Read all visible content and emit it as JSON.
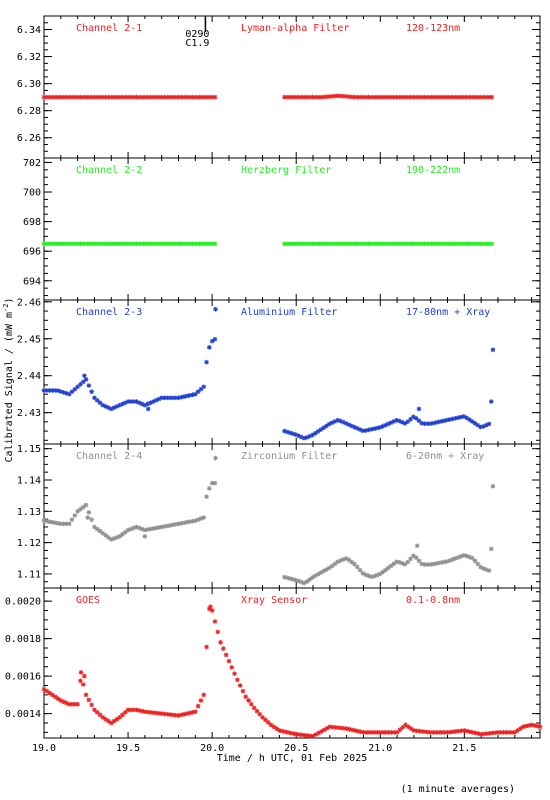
{
  "chart_data": {
    "type": "scatter",
    "ylabel": "Calibrated Signal / (mW m",
    "ylabel_sup": "-2",
    "ylabel_close": ")",
    "xlabel": "Time / h UTC, 01 Feb 2025",
    "footnote": "(1 minute averages)",
    "xlim": [
      19.0,
      21.95
    ],
    "xticks": [
      "19.0",
      "19.5",
      "20.0",
      "20.5",
      "21.0",
      "21.5"
    ],
    "marker": "*",
    "event_marker": {
      "x": 19.96,
      "label_top": "0290",
      "label_bottom": "C1.9"
    },
    "panels": [
      {
        "channel": "Channel 2-1",
        "filter": "Lyman-alpha Filter",
        "band": "120-123nm",
        "color": "#ee2222",
        "ylim": [
          6.245,
          6.35
        ],
        "yticks": [
          "6.26",
          "6.28",
          "6.30",
          "6.32",
          "6.34"
        ],
        "segments": [
          {
            "x": [
              19.0,
              20.03
            ],
            "y": [
              6.29,
              6.29
            ]
          },
          {
            "x": [
              20.43,
              20.65,
              20.75,
              20.85,
              21.67
            ],
            "y": [
              6.29,
              6.29,
              6.291,
              6.29,
              6.29
            ]
          }
        ]
      },
      {
        "channel": "Channel 2-2",
        "filter": "Herzberg Filter",
        "band": "190-222nm",
        "color": "#22ee22",
        "ylim": [
          692.7,
          702.3
        ],
        "yticks": [
          "694",
          "696",
          "698",
          "700",
          "702"
        ],
        "segments": [
          {
            "x": [
              19.0,
              20.03
            ],
            "y": [
              696.5,
              696.5
            ]
          },
          {
            "x": [
              20.43,
              21.67
            ],
            "y": [
              696.5,
              696.5
            ]
          }
        ]
      },
      {
        "channel": "Channel 2-3",
        "filter": "Aluminium Filter",
        "band": "17-80nm + Xray",
        "color": "#1f3fd0",
        "ylim": [
          2.4215,
          2.4605
        ],
        "yticks": [
          "2.43",
          "2.44",
          "2.45",
          "2.46"
        ],
        "segments": [
          {
            "x": [
              19.0,
              19.08,
              19.15,
              19.2,
              19.25,
              19.3,
              19.35,
              19.4,
              19.45,
              19.5,
              19.55,
              19.6,
              19.7,
              19.8,
              19.9,
              19.95,
              19.97,
              19.99,
              20.02
            ],
            "y": [
              2.436,
              2.436,
              2.435,
              2.437,
              2.439,
              2.434,
              2.432,
              2.431,
              2.432,
              2.433,
              2.433,
              2.432,
              2.434,
              2.434,
              2.435,
              2.437,
              2.445,
              2.449,
              2.45
            ]
          },
          {
            "x": [
              20.43,
              20.5,
              20.55,
              20.6,
              20.7,
              20.75,
              20.8,
              20.85,
              20.9,
              21.0,
              21.1,
              21.15,
              21.2,
              21.25,
              21.3,
              21.4,
              21.5,
              21.6,
              21.65
            ],
            "y": [
              2.425,
              2.424,
              2.423,
              2.424,
              2.427,
              2.428,
              2.427,
              2.426,
              2.425,
              2.426,
              2.428,
              2.427,
              2.429,
              2.427,
              2.427,
              2.428,
              2.429,
              2.426,
              2.427
            ]
          }
        ],
        "isolated": [
          {
            "x": 20.02,
            "y": 2.458
          },
          {
            "x": 19.24,
            "y": 2.44
          },
          {
            "x": 21.66,
            "y": 2.433
          },
          {
            "x": 21.67,
            "y": 2.447
          },
          {
            "x": 21.23,
            "y": 2.431
          },
          {
            "x": 19.62,
            "y": 2.431
          }
        ]
      },
      {
        "channel": "Channel 2-4",
        "filter": "Zirconium Filter",
        "band": "6-20nm + Xray",
        "color": "#909090",
        "ylim": [
          1.1055,
          1.1515
        ],
        "yticks": [
          "1.11",
          "1.12",
          "1.13",
          "1.14",
          "1.15"
        ],
        "segments": [
          {
            "x": [
              19.0,
              19.1,
              19.15,
              19.2,
              19.25,
              19.3,
              19.35,
              19.4,
              19.45,
              19.5,
              19.55,
              19.6,
              19.7,
              19.8,
              19.9,
              19.95,
              19.97,
              20.0,
              20.02
            ],
            "y": [
              1.127,
              1.126,
              1.126,
              1.13,
              1.132,
              1.125,
              1.123,
              1.121,
              1.122,
              1.124,
              1.125,
              1.124,
              1.125,
              1.126,
              1.127,
              1.128,
              1.136,
              1.139,
              1.139
            ]
          },
          {
            "x": [
              20.43,
              20.5,
              20.55,
              20.6,
              20.7,
              20.75,
              20.8,
              20.85,
              20.9,
              20.95,
              21.0,
              21.05,
              21.1,
              21.15,
              21.2,
              21.25,
              21.3,
              21.4,
              21.5,
              21.55,
              21.6,
              21.65
            ],
            "y": [
              1.109,
              1.108,
              1.107,
              1.109,
              1.112,
              1.114,
              1.115,
              1.113,
              1.11,
              1.109,
              1.11,
              1.112,
              1.114,
              1.113,
              1.116,
              1.113,
              1.113,
              1.114,
              1.116,
              1.115,
              1.112,
              1.111
            ]
          }
        ],
        "isolated": [
          {
            "x": 20.02,
            "y": 1.147
          },
          {
            "x": 19.26,
            "y": 1.128
          },
          {
            "x": 21.66,
            "y": 1.118
          },
          {
            "x": 21.67,
            "y": 1.138
          },
          {
            "x": 21.22,
            "y": 1.119
          },
          {
            "x": 19.6,
            "y": 1.122
          }
        ]
      },
      {
        "channel": "GOES",
        "filter": "Xray Sensor",
        "band": "0.1-0.8nm",
        "color": "#ee2222",
        "ylim": [
          0.00127,
          0.00207
        ],
        "yticks": [
          "0.0014",
          "0.0016",
          "0.0018",
          "0.0020"
        ],
        "segments": [
          {
            "x": [
              19.0,
              19.05,
              19.1,
              19.15,
              19.2,
              19.22,
              19.25,
              19.3,
              19.35,
              19.4,
              19.45,
              19.5,
              19.55,
              19.6,
              19.7,
              19.8,
              19.9,
              19.95,
              19.98,
              20.0,
              20.02,
              20.05,
              20.1,
              20.15,
              20.2,
              20.25,
              20.3,
              20.35,
              20.4,
              20.5,
              20.6,
              20.7,
              20.8,
              20.9,
              21.0,
              21.1,
              21.15,
              21.2,
              21.3,
              21.4,
              21.5,
              21.6,
              21.7,
              21.8,
              21.85,
              21.9,
              21.95
            ],
            "y": [
              0.00153,
              0.0015,
              0.00147,
              0.00145,
              0.00145,
              0.0016,
              0.0015,
              0.00142,
              0.00138,
              0.00135,
              0.00138,
              0.00142,
              0.00142,
              0.00141,
              0.0014,
              0.00139,
              0.00141,
              0.0015,
              0.00196,
              0.00195,
              0.00188,
              0.00178,
              0.00168,
              0.00158,
              0.00149,
              0.00143,
              0.00138,
              0.00134,
              0.00131,
              0.00129,
              0.00128,
              0.00133,
              0.00132,
              0.0013,
              0.0013,
              0.0013,
              0.00134,
              0.00131,
              0.0013,
              0.0013,
              0.00131,
              0.00129,
              0.0013,
              0.0013,
              0.00133,
              0.00134,
              0.00133
            ]
          }
        ],
        "isolated": [
          {
            "x": 19.22,
            "y": 0.00162
          },
          {
            "x": 19.24,
            "y": 0.0016
          },
          {
            "x": 19.99,
            "y": 0.00197
          }
        ]
      }
    ]
  }
}
